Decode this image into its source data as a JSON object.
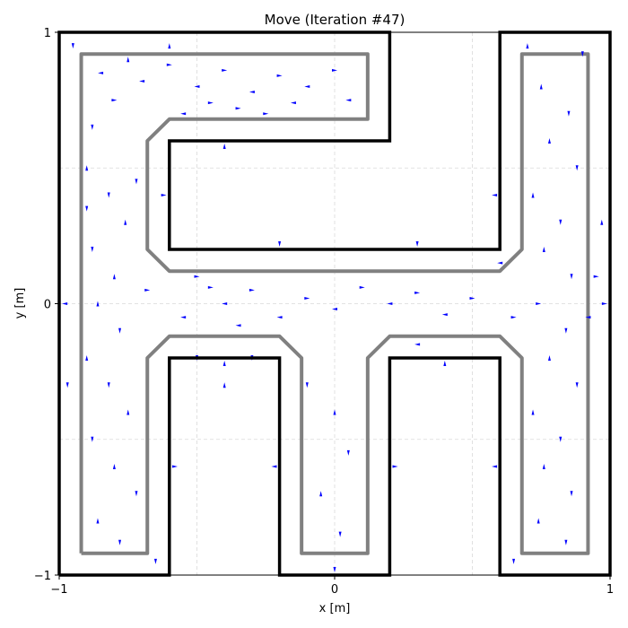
{
  "chart_data": {
    "type": "quiver",
    "title": "Move (Iteration #47)",
    "xlabel": "x [m]",
    "ylabel": "y [m]",
    "xlim": [
      -1,
      1
    ],
    "ylim": [
      -1,
      1
    ],
    "xticks": [
      -1,
      0,
      1
    ],
    "yticks": [
      -1,
      0,
      1
    ],
    "xtick_labels": [
      "−1",
      "0",
      "1"
    ],
    "ytick_labels": [
      "−1",
      "0",
      "1"
    ],
    "grid": true,
    "grid_values": [
      -0.5,
      0,
      0.5
    ],
    "legend": "none",
    "colors": {
      "particles": "#0000ff",
      "walls": "#000000",
      "path": "#808080",
      "grid": "#d9d9d9"
    },
    "walls": [
      [
        [
          -1,
          -1
        ],
        [
          -1,
          1
        ],
        [
          0.2,
          1
        ],
        [
          0.2,
          0.6
        ],
        [
          -0.6,
          0.6
        ],
        [
          -0.6,
          0.2
        ],
        [
          0.6,
          0.2
        ],
        [
          0.6,
          1
        ],
        [
          1,
          1
        ],
        [
          1,
          -1
        ],
        [
          0.6,
          -1
        ],
        [
          0.6,
          -0.2
        ],
        [
          0.2,
          -0.2
        ],
        [
          0.2,
          -1
        ],
        [
          -0.2,
          -1
        ],
        [
          -0.2,
          -0.2
        ],
        [
          -0.6,
          -0.2
        ],
        [
          -0.6,
          -1
        ],
        [
          -1,
          -1
        ]
      ]
    ],
    "path_outline": [
      [
        -0.92,
        -0.92
      ],
      [
        -0.92,
        0.92
      ],
      [
        0.12,
        0.92
      ],
      [
        0.12,
        0.68
      ],
      [
        -0.6,
        0.68
      ],
      [
        -0.68,
        0.6
      ],
      [
        -0.68,
        0.2
      ],
      [
        -0.6,
        0.12
      ],
      [
        0.6,
        0.12
      ],
      [
        0.68,
        0.2
      ],
      [
        0.68,
        0.92
      ],
      [
        0.92,
        0.92
      ],
      [
        0.92,
        -0.92
      ],
      [
        0.68,
        -0.92
      ],
      [
        0.68,
        -0.2
      ],
      [
        0.6,
        -0.12
      ],
      [
        0.2,
        -0.12
      ],
      [
        0.12,
        -0.2
      ],
      [
        0.12,
        -0.92
      ],
      [
        -0.12,
        -0.92
      ],
      [
        -0.12,
        -0.2
      ],
      [
        -0.2,
        -0.12
      ],
      [
        -0.6,
        -0.12
      ],
      [
        -0.68,
        -0.2
      ],
      [
        -0.68,
        -0.92
      ],
      [
        -0.92,
        -0.92
      ]
    ],
    "particles": [
      {
        "x": -0.85,
        "y": 0.85,
        "angle": 180
      },
      {
        "x": -0.8,
        "y": 0.75,
        "angle": 0
      },
      {
        "x": -0.75,
        "y": 0.9,
        "angle": 90
      },
      {
        "x": -0.88,
        "y": 0.65,
        "angle": 270
      },
      {
        "x": -0.7,
        "y": 0.82,
        "angle": 180
      },
      {
        "x": -0.6,
        "y": 0.88,
        "angle": 0
      },
      {
        "x": -0.5,
        "y": 0.8,
        "angle": 180
      },
      {
        "x": -0.4,
        "y": 0.86,
        "angle": 0
      },
      {
        "x": -0.3,
        "y": 0.78,
        "angle": 180
      },
      {
        "x": -0.2,
        "y": 0.84,
        "angle": 0
      },
      {
        "x": -0.1,
        "y": 0.8,
        "angle": 180
      },
      {
        "x": 0.0,
        "y": 0.86,
        "angle": 0
      },
      {
        "x": 0.05,
        "y": 0.75,
        "angle": 180
      },
      {
        "x": -0.35,
        "y": 0.72,
        "angle": 0
      },
      {
        "x": -0.55,
        "y": 0.7,
        "angle": 180
      },
      {
        "x": -0.25,
        "y": 0.7,
        "angle": 0
      },
      {
        "x": -0.15,
        "y": 0.74,
        "angle": 180
      },
      {
        "x": -0.45,
        "y": 0.74,
        "angle": 0
      },
      {
        "x": -0.9,
        "y": 0.5,
        "angle": 90
      },
      {
        "x": -0.82,
        "y": 0.4,
        "angle": 270
      },
      {
        "x": -0.76,
        "y": 0.3,
        "angle": 90
      },
      {
        "x": -0.88,
        "y": 0.2,
        "angle": 270
      },
      {
        "x": -0.8,
        "y": 0.1,
        "angle": 90
      },
      {
        "x": -0.72,
        "y": 0.45,
        "angle": 270
      },
      {
        "x": -0.86,
        "y": 0.0,
        "angle": 90
      },
      {
        "x": -0.78,
        "y": -0.1,
        "angle": 270
      },
      {
        "x": -0.9,
        "y": -0.2,
        "angle": 90
      },
      {
        "x": -0.82,
        "y": -0.3,
        "angle": 270
      },
      {
        "x": -0.75,
        "y": -0.4,
        "angle": 90
      },
      {
        "x": -0.88,
        "y": -0.5,
        "angle": 270
      },
      {
        "x": -0.8,
        "y": -0.6,
        "angle": 90
      },
      {
        "x": -0.72,
        "y": -0.7,
        "angle": 270
      },
      {
        "x": -0.86,
        "y": -0.8,
        "angle": 90
      },
      {
        "x": -0.78,
        "y": -0.88,
        "angle": 270
      },
      {
        "x": -0.5,
        "y": 0.1,
        "angle": 0
      },
      {
        "x": -0.4,
        "y": 0.0,
        "angle": 180
      },
      {
        "x": -0.3,
        "y": 0.05,
        "angle": 0
      },
      {
        "x": -0.2,
        "y": -0.05,
        "angle": 180
      },
      {
        "x": -0.1,
        "y": 0.02,
        "angle": 0
      },
      {
        "x": 0.0,
        "y": -0.02,
        "angle": 180
      },
      {
        "x": 0.1,
        "y": 0.06,
        "angle": 0
      },
      {
        "x": 0.2,
        "y": 0.0,
        "angle": 180
      },
      {
        "x": 0.3,
        "y": 0.04,
        "angle": 0
      },
      {
        "x": 0.4,
        "y": -0.04,
        "angle": 180
      },
      {
        "x": 0.5,
        "y": 0.02,
        "angle": 0
      },
      {
        "x": -0.55,
        "y": -0.05,
        "angle": 180
      },
      {
        "x": -0.45,
        "y": 0.06,
        "angle": 0
      },
      {
        "x": -0.35,
        "y": -0.08,
        "angle": 180
      },
      {
        "x": 0.75,
        "y": 0.8,
        "angle": 90
      },
      {
        "x": 0.85,
        "y": 0.7,
        "angle": 270
      },
      {
        "x": 0.78,
        "y": 0.6,
        "angle": 90
      },
      {
        "x": 0.88,
        "y": 0.5,
        "angle": 270
      },
      {
        "x": 0.72,
        "y": 0.4,
        "angle": 90
      },
      {
        "x": 0.82,
        "y": 0.3,
        "angle": 270
      },
      {
        "x": 0.76,
        "y": 0.2,
        "angle": 90
      },
      {
        "x": 0.86,
        "y": 0.1,
        "angle": 270
      },
      {
        "x": 0.74,
        "y": 0.0,
        "angle": 0
      },
      {
        "x": 0.84,
        "y": -0.1,
        "angle": 270
      },
      {
        "x": 0.78,
        "y": -0.2,
        "angle": 90
      },
      {
        "x": 0.88,
        "y": -0.3,
        "angle": 270
      },
      {
        "x": 0.72,
        "y": -0.4,
        "angle": 90
      },
      {
        "x": 0.82,
        "y": -0.5,
        "angle": 270
      },
      {
        "x": 0.76,
        "y": -0.6,
        "angle": 90
      },
      {
        "x": 0.86,
        "y": -0.7,
        "angle": 270
      },
      {
        "x": 0.74,
        "y": -0.8,
        "angle": 90
      },
      {
        "x": 0.84,
        "y": -0.88,
        "angle": 270
      },
      {
        "x": -0.5,
        "y": -0.2,
        "angle": 270
      },
      {
        "x": -0.4,
        "y": -0.3,
        "angle": 90
      },
      {
        "x": -0.3,
        "y": -0.2,
        "angle": 270
      },
      {
        "x": -0.1,
        "y": -0.3,
        "angle": 270
      },
      {
        "x": 0.0,
        "y": -0.4,
        "angle": 90
      },
      {
        "x": 0.05,
        "y": -0.55,
        "angle": 270
      },
      {
        "x": -0.05,
        "y": -0.7,
        "angle": 90
      },
      {
        "x": 0.02,
        "y": -0.85,
        "angle": 270
      },
      {
        "x": 0.3,
        "y": -0.15,
        "angle": 180
      },
      {
        "x": 0.45,
        "y": -0.2,
        "angle": 0
      },
      {
        "x": -0.9,
        "y": 0.35,
        "angle": 270
      },
      {
        "x": -0.68,
        "y": 0.05,
        "angle": 0
      },
      {
        "x": 0.6,
        "y": 0.15,
        "angle": 180
      },
      {
        "x": 0.65,
        "y": -0.05,
        "angle": 0
      },
      {
        "x": 0.95,
        "y": 0.1,
        "angle": 0
      },
      {
        "x": 0.92,
        "y": -0.05,
        "angle": 180
      },
      {
        "x": -0.95,
        "y": 0.95,
        "angle": 270
      },
      {
        "x": -0.6,
        "y": 0.95,
        "angle": 90
      },
      {
        "x": 0.7,
        "y": 0.95,
        "angle": 90
      },
      {
        "x": 0.9,
        "y": 0.92,
        "angle": 270
      },
      {
        "x": -0.65,
        "y": -0.95,
        "angle": 270
      },
      {
        "x": 0.65,
        "y": -0.95,
        "angle": 270
      },
      {
        "x": 0.0,
        "y": -0.98,
        "angle": 270
      },
      {
        "x": -0.98,
        "y": 0.0,
        "angle": 180
      },
      {
        "x": 0.98,
        "y": 0.0,
        "angle": 0
      },
      {
        "x": -0.97,
        "y": -0.3,
        "angle": 270
      },
      {
        "x": 0.97,
        "y": 0.3,
        "angle": 90
      },
      {
        "x": -0.62,
        "y": 0.4,
        "angle": 0
      },
      {
        "x": 0.58,
        "y": 0.4,
        "angle": 180
      },
      {
        "x": -0.4,
        "y": 0.58,
        "angle": 90
      },
      {
        "x": -0.2,
        "y": 0.22,
        "angle": 270
      },
      {
        "x": 0.3,
        "y": 0.22,
        "angle": 270
      },
      {
        "x": -0.4,
        "y": -0.22,
        "angle": 90
      },
      {
        "x": 0.4,
        "y": -0.22,
        "angle": 90
      },
      {
        "x": -0.58,
        "y": -0.6,
        "angle": 0
      },
      {
        "x": -0.22,
        "y": -0.6,
        "angle": 180
      },
      {
        "x": 0.22,
        "y": -0.6,
        "angle": 0
      },
      {
        "x": 0.58,
        "y": -0.6,
        "angle": 180
      }
    ]
  }
}
